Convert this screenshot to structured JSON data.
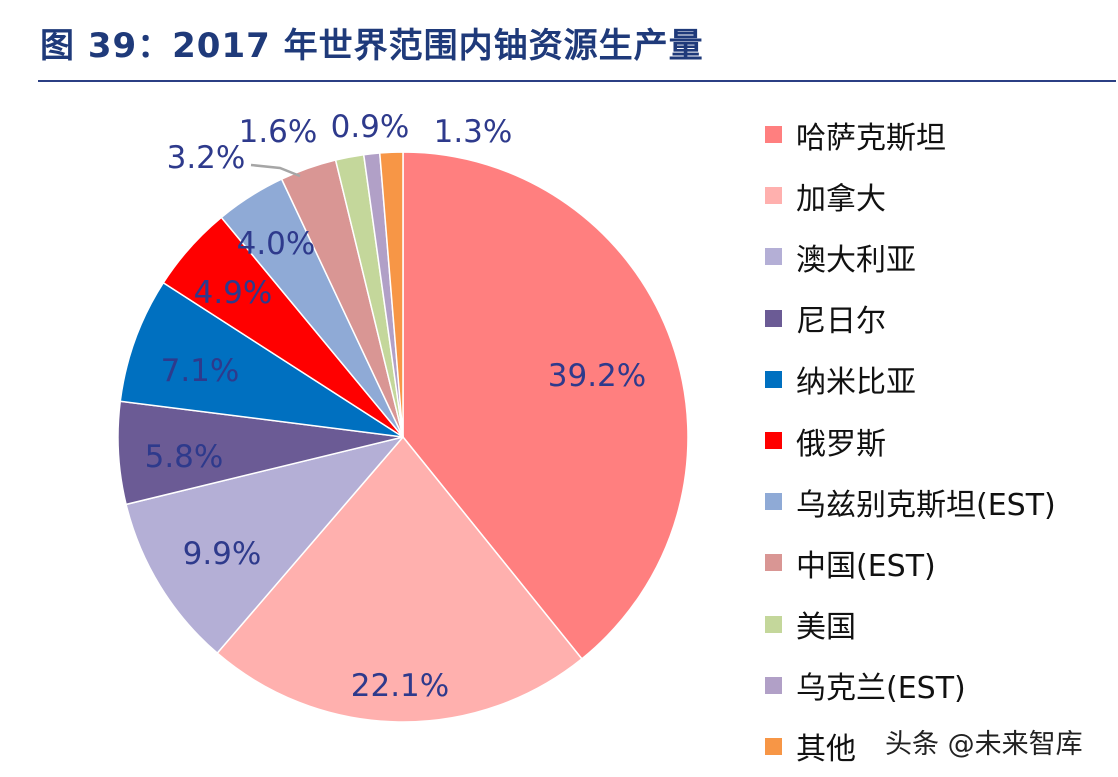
{
  "title": "图 39：2017 年世界范围内铀资源生产量",
  "watermark": "头条 @未来智库",
  "chart_data": {
    "type": "pie",
    "start_angle_deg": 0,
    "direction": "clockwise",
    "label_color": "#2e3a8c",
    "legend_position": "right",
    "slices": [
      {
        "name": "哈萨克斯坦",
        "value": 39.2,
        "label": "39.2%",
        "color": "#ff7f7f"
      },
      {
        "name": "加拿大",
        "value": 22.1,
        "label": "22.1%",
        "color": "#ffb0ae"
      },
      {
        "name": "澳大利亚",
        "value": 9.9,
        "label": "9.9%",
        "color": "#b4afd6"
      },
      {
        "name": "尼日尔",
        "value": 5.8,
        "label": "5.8%",
        "color": "#6b5b95"
      },
      {
        "name": "纳米比亚",
        "value": 7.1,
        "label": "7.1%",
        "color": "#0070c0"
      },
      {
        "name": "俄罗斯",
        "value": 4.9,
        "label": "4.9%",
        "color": "#ff0000"
      },
      {
        "name": "乌兹别克斯坦(EST)",
        "value": 4.0,
        "label": "4.0%",
        "color": "#8faad6"
      },
      {
        "name": "中国(EST)",
        "value": 3.2,
        "label": "3.2%",
        "color": "#d99694"
      },
      {
        "name": "美国",
        "value": 1.6,
        "label": "1.6%",
        "color": "#c4d79b"
      },
      {
        "name": "乌克兰(EST)",
        "value": 0.9,
        "label": "0.9%",
        "color": "#b1a0c7"
      },
      {
        "name": "其他",
        "value": 1.3,
        "label": "1.3%",
        "color": "#f79646"
      }
    ]
  }
}
